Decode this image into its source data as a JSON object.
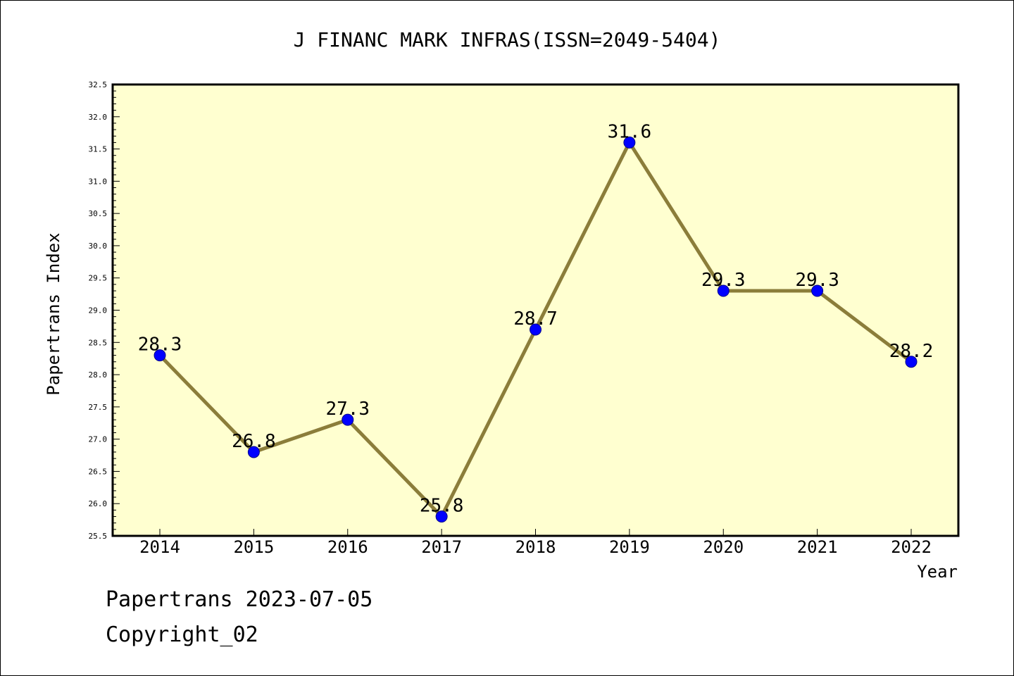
{
  "chart_data": {
    "type": "line",
    "title": "J FINANC MARK INFRAS(ISSN=2049-5404)",
    "xlabel": "Year",
    "ylabel": "Papertrans Index",
    "categories": [
      "2014",
      "2015",
      "2016",
      "2017",
      "2018",
      "2019",
      "2020",
      "2021",
      "2022"
    ],
    "series": [
      {
        "values": [
          28.3,
          26.8,
          27.3,
          25.8,
          28.7,
          31.6,
          29.3,
          29.3,
          28.2
        ],
        "labels": [
          "28.3",
          "26.8",
          "27.3",
          "25.8",
          "28.7",
          "31.6",
          "29.3",
          "29.3",
          "28.2"
        ]
      }
    ],
    "ylim": [
      25.5,
      32.5
    ],
    "yticks": [
      "25.5",
      "26.0",
      "26.5",
      "27.0",
      "27.5",
      "28.0",
      "28.5",
      "29.0",
      "29.5",
      "30.0",
      "30.5",
      "31.0",
      "31.5",
      "32.0",
      "32.5"
    ],
    "grid": false,
    "colors": {
      "plot_background": "#ffffd0",
      "line": "#8b7d3a",
      "marker": "#0000ff"
    }
  },
  "footer": {
    "date_text": "Papertrans 2023-07-05",
    "copyright_text": "Copyright_02"
  }
}
